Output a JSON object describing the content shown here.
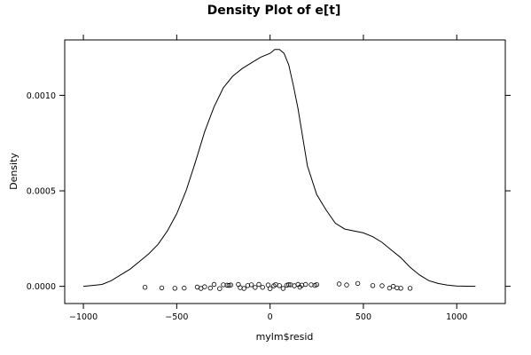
{
  "chart_data": {
    "type": "line",
    "title": "Density Plot of e[t]",
    "xlabel": "mylm$resid",
    "ylabel": "Density",
    "xlim": [
      -1100,
      1260
    ],
    "ylim": [
      -9e-05,
      0.00129
    ],
    "x_ticks": [
      {
        "value": -1000,
        "label": "−1000"
      },
      {
        "value": -500,
        "label": "−500"
      },
      {
        "value": 0,
        "label": "0"
      },
      {
        "value": 500,
        "label": "500"
      },
      {
        "value": 1000,
        "label": "1000"
      }
    ],
    "y_ticks": [
      {
        "value": 0.0,
        "label": "0.0000"
      },
      {
        "value": 0.0005,
        "label": "0.0005"
      },
      {
        "value": 0.001,
        "label": "0.0010"
      }
    ],
    "grid": false,
    "series": [
      {
        "kind": "density",
        "x": [
          -1000,
          -950,
          -900,
          -850,
          -800,
          -750,
          -700,
          -650,
          -600,
          -550,
          -500,
          -450,
          -400,
          -350,
          -300,
          -250,
          -200,
          -150,
          -100,
          -50,
          0,
          25,
          50,
          75,
          100,
          125,
          150,
          175,
          200,
          250,
          300,
          350,
          400,
          450,
          500,
          550,
          600,
          650,
          700,
          750,
          800,
          850,
          900,
          950,
          1000,
          1050,
          1100
        ],
        "y": [
          0.0,
          5e-06,
          1e-05,
          3e-05,
          6e-05,
          9e-05,
          0.00013,
          0.00017,
          0.00022,
          0.00029,
          0.00038,
          0.0005,
          0.00065,
          0.00081,
          0.00094,
          0.00104,
          0.0011,
          0.00114,
          0.00117,
          0.0012,
          0.00122,
          0.00124,
          0.00124,
          0.00122,
          0.00116,
          0.00105,
          0.00093,
          0.00078,
          0.00063,
          0.00048,
          0.0004,
          0.00033,
          0.0003,
          0.00029,
          0.00028,
          0.00026,
          0.00023,
          0.00019,
          0.00015,
          0.0001,
          6e-05,
          3e-05,
          1.5e-05,
          6e-06,
          2e-06,
          5e-07,
          0.0
        ]
      },
      {
        "kind": "rug",
        "x": [
          -670,
          -580,
          -510,
          -460,
          -390,
          -370,
          -350,
          -320,
          -300,
          -270,
          -250,
          -230,
          -220,
          -210,
          -170,
          -160,
          -140,
          -120,
          -100,
          -80,
          -60,
          -40,
          -10,
          0,
          20,
          30,
          50,
          70,
          90,
          100,
          110,
          130,
          150,
          160,
          170,
          190,
          220,
          240,
          250,
          370,
          410,
          470,
          550,
          600,
          640,
          660,
          680,
          700,
          750
        ],
        "y": [
          -5e-06,
          -8e-06,
          -1e-05,
          -9e-06,
          -4e-06,
          -1.1e-05,
          -2e-06,
          -9e-06,
          1e-05,
          -1.2e-05,
          8e-06,
          6e-06,
          5e-06,
          7e-06,
          1e-05,
          -7e-06,
          -1.1e-05,
          4e-06,
          8e-06,
          -6e-06,
          1e-05,
          -5e-06,
          7e-06,
          -1.2e-05,
          3e-06,
          9e-06,
          4e-06,
          -1.1e-05,
          6e-06,
          9e-06,
          8e-06,
          3e-06,
          1e-05,
          -4e-06,
          6e-06,
          1e-05,
          8e-06,
          5e-06,
          9e-06,
          1.2e-05,
          7e-06,
          1.5e-05,
          4e-06,
          3e-06,
          -9e-06,
          0.0,
          -8e-06,
          -1e-05,
          -1e-05
        ]
      }
    ]
  }
}
